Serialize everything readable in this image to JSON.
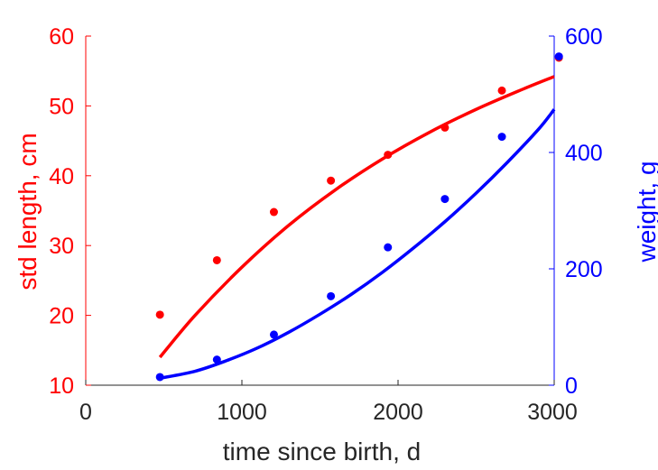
{
  "chart_data": {
    "type": "scatter",
    "title": "",
    "xlabel": "time since birth, d",
    "ylabel_left": "std length, cm",
    "ylabel_right": "weight, g",
    "xlim": [
      0,
      3000
    ],
    "ylim_left": [
      10,
      60
    ],
    "ylim_right": [
      0,
      600
    ],
    "x_ticks": [
      "0",
      "1000",
      "2000",
      "3000"
    ],
    "y_left_ticks": [
      "10",
      "20",
      "30",
      "40",
      "50",
      "60"
    ],
    "y_right_ticks": [
      "0",
      "200",
      "400",
      "600"
    ],
    "grid": false,
    "legend": "none",
    "colors": {
      "left": "#ff0000",
      "right": "#0000ff",
      "axis": "#262626"
    },
    "series": [
      {
        "axis": "left",
        "points": {
          "x": [
            475,
            840,
            1205,
            1570,
            1935,
            2300,
            2665,
            3030
          ],
          "y": [
            20.1,
            27.9,
            34.8,
            39.3,
            43.0,
            46.9,
            52.2,
            56.9
          ]
        },
        "fit": {
          "x": [
            475,
            700,
            1000,
            1300,
            1600,
            1900,
            2200,
            2500,
            2800,
            3000
          ],
          "y": [
            14.0,
            20.0,
            26.9,
            32.9,
            38.0,
            42.4,
            46.2,
            49.5,
            52.4,
            54.2
          ]
        }
      },
      {
        "axis": "right",
        "points": {
          "x": [
            475,
            840,
            1205,
            1570,
            1935,
            2300,
            2665,
            3030
          ],
          "y": [
            14,
            44,
            87,
            153,
            237,
            320,
            427,
            565
          ]
        },
        "fit": {
          "x": [
            475,
            700,
            900,
            1100,
            1300,
            1500,
            1700,
            1900,
            2100,
            2300,
            2500,
            2700,
            2900,
            3000
          ],
          "y": [
            12,
            24,
            42,
            64,
            91,
            122,
            156,
            194,
            236,
            281,
            330,
            383,
            440,
            474
          ]
        }
      }
    ]
  }
}
